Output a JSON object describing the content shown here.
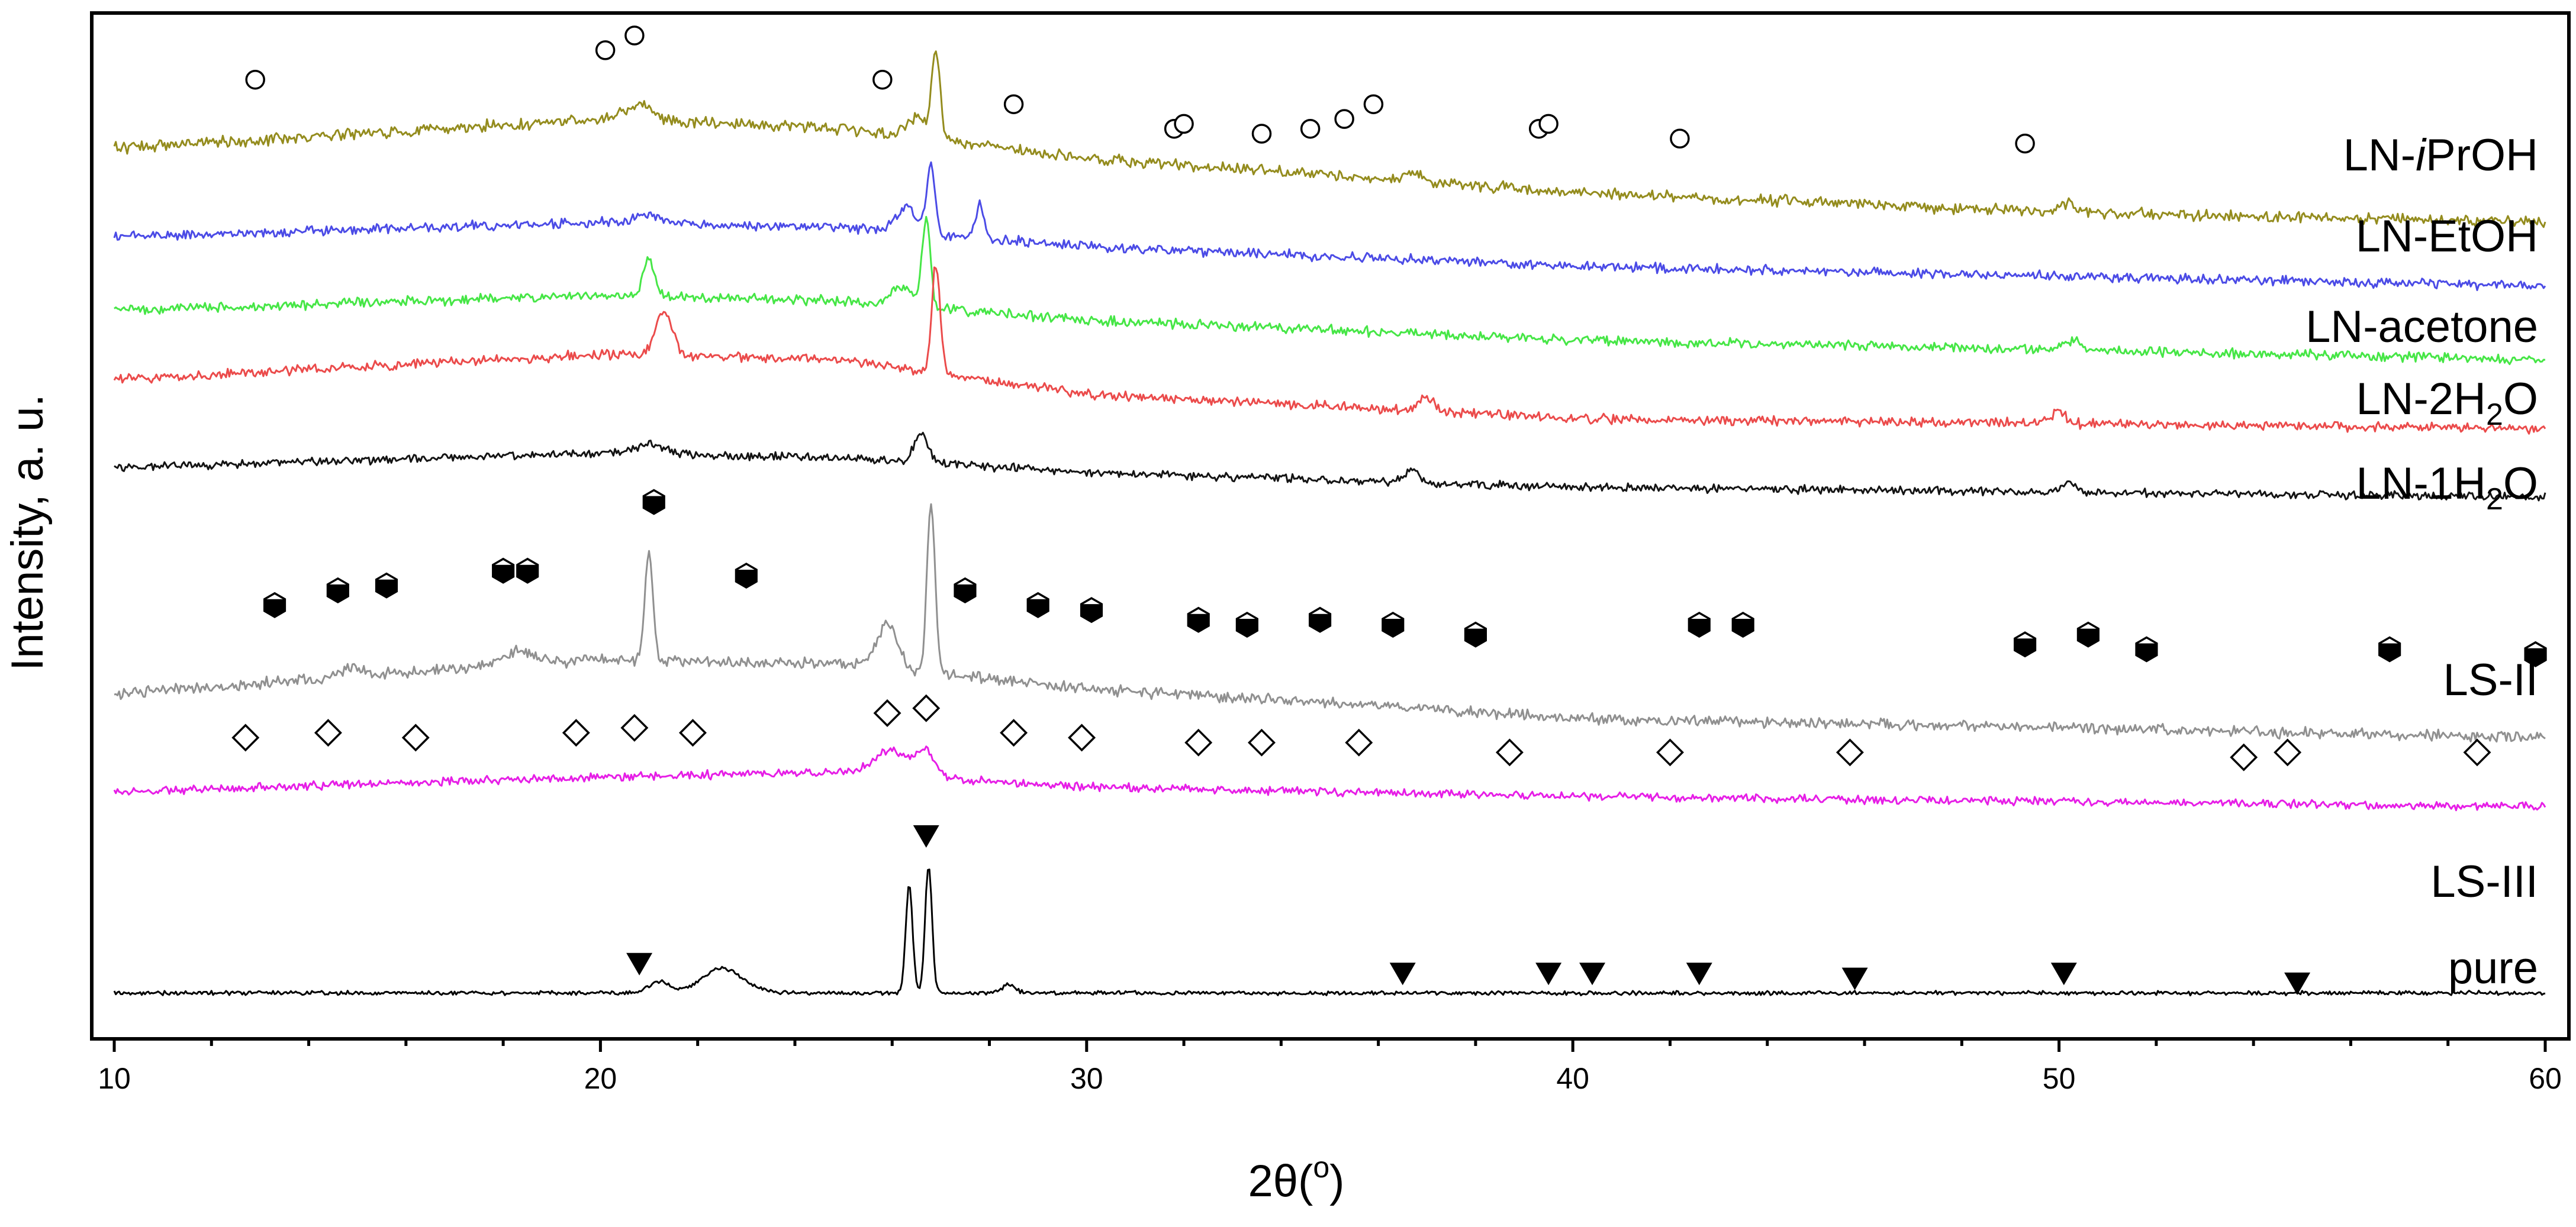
{
  "chart_data": {
    "type": "line",
    "title": "",
    "xlabel_main": "2θ(",
    "xlabel_sup": "o",
    "xlabel_end": ")",
    "ylabel": "Intensity, a. u.",
    "xlim": [
      10,
      60
    ],
    "ylim": [
      0,
      100
    ],
    "xticks": [
      10,
      20,
      30,
      40,
      50,
      60
    ],
    "xtick_labels": [
      "10",
      "20",
      "30",
      "40",
      "50",
      "60"
    ],
    "series": [
      {
        "name": "LN-iPrOH",
        "label_main": "LN-",
        "label_italic": "i",
        "label_end": "PrOH",
        "color": "#948C1E",
        "baseline": [
          [
            10,
            88.5
          ],
          [
            20,
            91.5
          ],
          [
            25,
            90.5
          ],
          [
            30,
            87.5
          ],
          [
            40,
            84
          ],
          [
            50,
            82
          ],
          [
            60,
            81
          ]
        ],
        "peaks": [
          [
            20.8,
            1.5,
            0.4
          ],
          [
            26.5,
            2,
            0.3
          ],
          [
            26.9,
            9,
            0.12
          ],
          [
            36.7,
            1.2,
            0.2
          ],
          [
            50.2,
            1,
            0.2
          ]
        ],
        "noise": 0.7,
        "seed": 1
      },
      {
        "name": "LN-EtOH",
        "label_main": "LN-EtOH",
        "color": "#4B4BE6",
        "baseline": [
          [
            10,
            79.5
          ],
          [
            20,
            81
          ],
          [
            25,
            80.5
          ],
          [
            30,
            78.5
          ],
          [
            40,
            76.5
          ],
          [
            50,
            75.5
          ],
          [
            60,
            74.5
          ]
        ],
        "peaks": [
          [
            26.3,
            2.5,
            0.3
          ],
          [
            26.8,
            7,
            0.12
          ],
          [
            27.8,
            3.5,
            0.12
          ],
          [
            21,
            1,
            0.3
          ]
        ],
        "noise": 0.6,
        "seed": 2
      },
      {
        "name": "LN-acetone",
        "label_main": "LN-acetone",
        "color": "#46E646",
        "baseline": [
          [
            10,
            72
          ],
          [
            20,
            73.5
          ],
          [
            25,
            73
          ],
          [
            30,
            71
          ],
          [
            40,
            69
          ],
          [
            50,
            68
          ],
          [
            60,
            67
          ]
        ],
        "peaks": [
          [
            21,
            4,
            0.15
          ],
          [
            26.7,
            9,
            0.12
          ],
          [
            26.2,
            2,
            0.3
          ],
          [
            50.3,
            1,
            0.2
          ]
        ],
        "noise": 0.6,
        "seed": 3
      },
      {
        "name": "LN-2H2O",
        "label_main": "LN-2H",
        "label_sub": "2",
        "label_end": "O",
        "color": "#EB4B4B",
        "baseline": [
          [
            10,
            65
          ],
          [
            20,
            67.5
          ],
          [
            25,
            67
          ],
          [
            30,
            63.5
          ],
          [
            40,
            61
          ],
          [
            50,
            60.5
          ],
          [
            60,
            60
          ]
        ],
        "peaks": [
          [
            21.3,
            4.5,
            0.25
          ],
          [
            26.9,
            11,
            0.12
          ],
          [
            37,
            1.5,
            0.2
          ],
          [
            50,
            1.2,
            0.2
          ]
        ],
        "noise": 0.6,
        "seed": 4
      },
      {
        "name": "LN-1H2O",
        "label_main": "LN-1H",
        "label_sub": "2",
        "label_end": "O",
        "color": "#141414",
        "baseline": [
          [
            10,
            56
          ],
          [
            20,
            57.5
          ],
          [
            25,
            57
          ],
          [
            30,
            55.5
          ],
          [
            40,
            54
          ],
          [
            50,
            53.5
          ],
          [
            60,
            53
          ]
        ],
        "peaks": [
          [
            26.6,
            3,
            0.2
          ],
          [
            36.7,
            1.3,
            0.2
          ],
          [
            50.2,
            1,
            0.2
          ],
          [
            21,
            1,
            0.4
          ]
        ],
        "noise": 0.5,
        "seed": 5
      },
      {
        "name": "LS-II",
        "label_main": "LS-II",
        "color": "#909090",
        "baseline": [
          [
            10,
            33
          ],
          [
            20,
            36.5
          ],
          [
            25,
            36
          ],
          [
            30,
            33.5
          ],
          [
            40,
            30.5
          ],
          [
            50,
            29.5
          ],
          [
            60,
            28.5
          ]
        ],
        "peaks": [
          [
            21,
            11,
            0.12
          ],
          [
            26.8,
            17,
            0.12
          ],
          [
            25.9,
            4.5,
            0.3
          ],
          [
            18.3,
            1.5,
            0.4
          ],
          [
            14.9,
            1,
            0.3
          ]
        ],
        "noise": 0.7,
        "seed": 6
      },
      {
        "name": "LS-III",
        "label_main": "LS-III",
        "color": "#E61EE6",
        "baseline": [
          [
            10,
            23
          ],
          [
            20,
            24.5
          ],
          [
            25,
            25
          ],
          [
            30,
            23.5
          ],
          [
            40,
            22.5
          ],
          [
            50,
            22
          ],
          [
            60,
            21.5
          ]
        ],
        "peaks": [
          [
            26,
            2.5,
            0.5
          ],
          [
            26.7,
            2.5,
            0.25
          ]
        ],
        "noise": 0.5,
        "seed": 7
      },
      {
        "name": "pure",
        "label_main": "pure",
        "color": "#000000",
        "baseline": [
          [
            10,
            2.5
          ],
          [
            60,
            2.5
          ]
        ],
        "peaks": [
          [
            26.35,
            11,
            0.1
          ],
          [
            26.75,
            13,
            0.1
          ],
          [
            22.5,
            2.5,
            0.6
          ],
          [
            21.2,
            1.2,
            0.3
          ],
          [
            28.4,
            0.8,
            0.2
          ]
        ],
        "noise": 0.25,
        "seed": 8
      }
    ],
    "markers": [
      {
        "symbol": "circle",
        "series": "LN-iPrOH",
        "points": [
          [
            12.9,
            95.5
          ],
          [
            20.1,
            98.5
          ],
          [
            20.7,
            100
          ],
          [
            25.8,
            95.5
          ],
          [
            28.5,
            93
          ],
          [
            31.8,
            90.5
          ],
          [
            32,
            91
          ],
          [
            33.6,
            90
          ],
          [
            34.6,
            90.5
          ],
          [
            35.3,
            91.5
          ],
          [
            35.9,
            93
          ],
          [
            39.3,
            90.5
          ],
          [
            39.5,
            91
          ],
          [
            42.2,
            89.5
          ],
          [
            49.3,
            89
          ]
        ]
      },
      {
        "symbol": "hexagon",
        "series": "LS-II",
        "points": [
          [
            13.3,
            42
          ],
          [
            14.6,
            43.5
          ],
          [
            15.6,
            44
          ],
          [
            18,
            45.5
          ],
          [
            18.5,
            45.5
          ],
          [
            21.1,
            52.5
          ],
          [
            23,
            45
          ],
          [
            27.5,
            43.5
          ],
          [
            29,
            42
          ],
          [
            30.1,
            41.5
          ],
          [
            32.3,
            40.5
          ],
          [
            33.3,
            40
          ],
          [
            34.8,
            40.5
          ],
          [
            36.3,
            40
          ],
          [
            38,
            39
          ],
          [
            42.6,
            40
          ],
          [
            43.5,
            40
          ],
          [
            49.3,
            38
          ],
          [
            50.6,
            39
          ],
          [
            51.8,
            37.5
          ],
          [
            56.8,
            37.5
          ],
          [
            59.8,
            37
          ]
        ]
      },
      {
        "symbol": "diamond",
        "series": "LS-III",
        "points": [
          [
            12.7,
            28.5
          ],
          [
            14.4,
            29
          ],
          [
            16.2,
            28.5
          ],
          [
            19.5,
            29
          ],
          [
            20.7,
            29.5
          ],
          [
            21.9,
            29
          ],
          [
            26.7,
            31.5
          ],
          [
            25.9,
            31
          ],
          [
            28.5,
            29
          ],
          [
            29.9,
            28.5
          ],
          [
            32.3,
            28
          ],
          [
            33.6,
            28
          ],
          [
            35.6,
            28
          ],
          [
            38.7,
            27
          ],
          [
            42,
            27
          ],
          [
            45.7,
            27
          ],
          [
            53.8,
            26.5
          ],
          [
            54.7,
            27
          ],
          [
            58.6,
            27
          ]
        ]
      },
      {
        "symbol": "triangle",
        "series": "pure",
        "points": [
          [
            20.8,
            5.5
          ],
          [
            26.7,
            18.5
          ],
          [
            36.5,
            4.5
          ],
          [
            39.5,
            4.5
          ],
          [
            40.4,
            4.5
          ],
          [
            42.6,
            4.5
          ],
          [
            45.8,
            4
          ],
          [
            50.1,
            4.5
          ],
          [
            54.9,
            3.5
          ]
        ]
      }
    ]
  }
}
